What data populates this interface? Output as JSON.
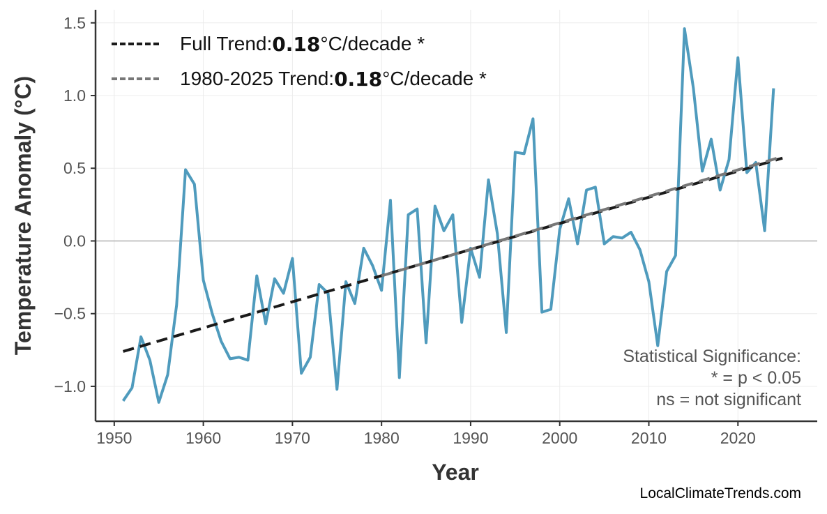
{
  "chart_data": {
    "type": "line",
    "title": "",
    "xlabel": "Year",
    "ylabel": "Temperature Anomaly (°C)",
    "xlim": [
      1947.9,
      2028.9
    ],
    "ylim": [
      -1.24,
      1.59
    ],
    "xticks": [
      1950,
      1960,
      1970,
      1980,
      1990,
      2000,
      2010,
      2020
    ],
    "yticks": [
      1.5,
      1.0,
      0.5,
      0.0,
      -0.5,
      -1.0
    ],
    "ytick_labels": [
      "1.5",
      "1.0",
      "0.5",
      "0.0",
      "−0.5",
      "−1.0"
    ],
    "grid": true,
    "legend_position": "top-left",
    "series": [
      {
        "color": "#4f9bbd",
        "x": [
          1951,
          1952,
          1953,
          1954,
          1955,
          1956,
          1957,
          1958,
          1959,
          1960,
          1961,
          1962,
          1963,
          1964,
          1965,
          1966,
          1967,
          1968,
          1969,
          1970,
          1971,
          1972,
          1973,
          1974,
          1975,
          1976,
          1977,
          1978,
          1979,
          1980,
          1981,
          1982,
          1983,
          1984,
          1985,
          1986,
          1987,
          1988,
          1989,
          1990,
          1991,
          1992,
          1993,
          1994,
          1995,
          1996,
          1997,
          1998,
          1999,
          2000,
          2001,
          2002,
          2003,
          2004,
          2005,
          2006,
          2007,
          2008,
          2009,
          2010,
          2011,
          2012,
          2013,
          2014,
          2015,
          2016,
          2017,
          2018,
          2019,
          2020,
          2021,
          2022,
          2023,
          2024
        ],
        "y": [
          -1.1,
          -1.01,
          -0.66,
          -0.82,
          -1.11,
          -0.92,
          -0.44,
          0.49,
          0.39,
          -0.27,
          -0.5,
          -0.69,
          -0.81,
          -0.8,
          -0.82,
          -0.24,
          -0.57,
          -0.26,
          -0.36,
          -0.12,
          -0.91,
          -0.8,
          -0.3,
          -0.36,
          -1.02,
          -0.28,
          -0.43,
          -0.05,
          -0.17,
          -0.34,
          0.28,
          -0.94,
          0.18,
          0.22,
          -0.7,
          0.24,
          0.07,
          0.18,
          -0.56,
          -0.05,
          -0.25,
          0.42,
          0.05,
          -0.63,
          0.61,
          0.6,
          0.84,
          -0.49,
          -0.47,
          0.08,
          0.29,
          -0.02,
          0.35,
          0.37,
          -0.02,
          0.03,
          0.02,
          0.06,
          -0.06,
          -0.28,
          -0.72,
          -0.21,
          -0.1,
          1.46,
          1.05,
          0.48,
          0.7,
          0.35,
          0.56,
          1.26,
          0.47,
          0.54,
          0.07,
          1.05
        ]
      }
    ],
    "trends": [
      {
        "label_prefix": "Full Trend: ",
        "value": "0.18",
        "label_suffix": "°C/decade *",
        "color": "#1a1a1a",
        "x": [
          1951,
          2025
        ],
        "y": [
          -0.76,
          0.57
        ]
      },
      {
        "label_prefix": "1980-2025 Trend: ",
        "value": "0.18",
        "label_suffix": "°C/decade *",
        "color": "#777777",
        "x": [
          1980,
          2025
        ],
        "y": [
          -0.24,
          0.58
        ]
      }
    ],
    "annotation": [
      "Statistical Significance:",
      "* = p < 0.05",
      "ns = not significant"
    ]
  },
  "source": "LocalClimateTrends.com"
}
